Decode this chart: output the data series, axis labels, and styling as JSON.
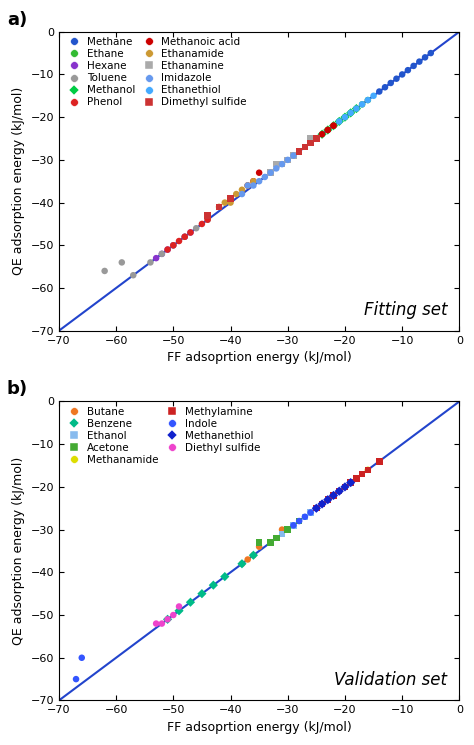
{
  "panel_a": {
    "title": "Fitting set",
    "xlabel": "FF adsoprtion energy (kJ/mol)",
    "ylabel": "QE adsorption energy (kJ/mol)",
    "xlim": [
      -70,
      0
    ],
    "ylim": [
      -70,
      0
    ],
    "xticks": [
      -70,
      -60,
      -50,
      -40,
      -30,
      -20,
      -10,
      0
    ],
    "yticks": [
      -70,
      -60,
      -50,
      -40,
      -30,
      -20,
      -10,
      0
    ],
    "label": "a)",
    "series": [
      {
        "name": "Methane",
        "color": "#2255cc",
        "marker": "o",
        "x": [
          -7,
          -8,
          -9,
          -10,
          -11,
          -12,
          -13,
          -14,
          -6,
          -5
        ],
        "y": [
          -7,
          -8,
          -9,
          -10,
          -11,
          -12,
          -13,
          -14,
          -6,
          -5
        ]
      },
      {
        "name": "Ethane",
        "color": "#33bb33",
        "marker": "o",
        "x": [
          -16,
          -17,
          -18,
          -19,
          -20,
          -21,
          -22
        ],
        "y": [
          -16,
          -17,
          -18,
          -19,
          -20,
          -21,
          -22
        ]
      },
      {
        "name": "Hexane",
        "color": "#8833cc",
        "marker": "o",
        "x": [
          -47,
          -48,
          -50,
          -51,
          -52,
          -53
        ],
        "y": [
          -47,
          -48,
          -50,
          -51,
          -52,
          -53
        ]
      },
      {
        "name": "Toluene",
        "color": "#999999",
        "marker": "o",
        "x": [
          -44,
          -46,
          -48,
          -50,
          -52,
          -54,
          -57,
          -59,
          -62
        ],
        "y": [
          -44,
          -46,
          -48,
          -50,
          -52,
          -54,
          -57,
          -54,
          -56
        ]
      },
      {
        "name": "Methanol",
        "color": "#00cc44",
        "marker": "D",
        "x": [
          -18,
          -19,
          -20,
          -21,
          -22,
          -23,
          -24
        ],
        "y": [
          -18,
          -19,
          -20,
          -21,
          -22,
          -23,
          -24
        ]
      },
      {
        "name": "Phenol",
        "color": "#dd2222",
        "marker": "o",
        "x": [
          -44,
          -45,
          -47,
          -48,
          -49,
          -50,
          -51,
          -22,
          -23
        ],
        "y": [
          -44,
          -45,
          -47,
          -48,
          -49,
          -50,
          -51,
          -22,
          -23
        ]
      },
      {
        "name": "Methanoic acid",
        "color": "#cc0000",
        "marker": "o",
        "x": [
          -22,
          -23,
          -24,
          -35,
          -36,
          -37
        ],
        "y": [
          -22,
          -23,
          -24,
          -33,
          -35,
          -36
        ]
      },
      {
        "name": "Ethanamide",
        "color": "#cc9933",
        "marker": "o",
        "x": [
          -36,
          -37,
          -38,
          -39,
          -40,
          -41,
          -42
        ],
        "y": [
          -35,
          -36,
          -37,
          -38,
          -40,
          -40,
          -41
        ]
      },
      {
        "name": "Ethanamine",
        "color": "#aaaaaa",
        "marker": "s",
        "x": [
          -26,
          -27,
          -28,
          -29,
          -30,
          -31,
          -32,
          -33
        ],
        "y": [
          -25,
          -27,
          -28,
          -29,
          -30,
          -31,
          -31,
          -33
        ]
      },
      {
        "name": "Imidazole",
        "color": "#6699ee",
        "marker": "o",
        "x": [
          -29,
          -30,
          -31,
          -32,
          -33,
          -34,
          -35,
          -36,
          -37,
          -38
        ],
        "y": [
          -29,
          -30,
          -31,
          -32,
          -33,
          -34,
          -35,
          -36,
          -36,
          -38
        ]
      },
      {
        "name": "Ethanethiol",
        "color": "#44aaff",
        "marker": "o",
        "x": [
          -15,
          -16,
          -17,
          -18,
          -19,
          -20,
          -21
        ],
        "y": [
          -15,
          -16,
          -17,
          -18,
          -19,
          -20,
          -21
        ]
      },
      {
        "name": "Dimethyl sulfide",
        "color": "#cc3333",
        "marker": "s",
        "x": [
          -25,
          -26,
          -27,
          -28,
          -40,
          -42,
          -44
        ],
        "y": [
          -25,
          -26,
          -27,
          -28,
          -39,
          -41,
          -43
        ]
      }
    ]
  },
  "panel_b": {
    "title": "Validation set",
    "xlabel": "FF adsoprtion energy (kJ/mol)",
    "ylabel": "QE adsorption energy (kJ/mol)",
    "xlim": [
      -70,
      0
    ],
    "ylim": [
      -70,
      0
    ],
    "xticks": [
      -70,
      -60,
      -50,
      -40,
      -30,
      -20,
      -10,
      0
    ],
    "yticks": [
      -70,
      -60,
      -50,
      -40,
      -30,
      -20,
      -10,
      0
    ],
    "label": "b)",
    "series": [
      {
        "name": "Butane",
        "color": "#ee7722",
        "marker": "o",
        "x": [
          -29,
          -31,
          -33,
          -35,
          -36,
          -37,
          -38
        ],
        "y": [
          -29,
          -30,
          -33,
          -34,
          -36,
          -37,
          -38
        ]
      },
      {
        "name": "Benzene",
        "color": "#00bb88",
        "marker": "D",
        "x": [
          -36,
          -38,
          -41,
          -43,
          -45,
          -47,
          -49,
          -51
        ],
        "y": [
          -36,
          -38,
          -41,
          -43,
          -45,
          -47,
          -49,
          -51
        ]
      },
      {
        "name": "Ethanol",
        "color": "#88bbee",
        "marker": "s",
        "x": [
          -22,
          -24,
          -26,
          -27,
          -28,
          -29,
          -30,
          -31,
          -32
        ],
        "y": [
          -22,
          -24,
          -26,
          -27,
          -28,
          -29,
          -30,
          -31,
          -32
        ]
      },
      {
        "name": "Acetone",
        "color": "#44aa33",
        "marker": "s",
        "x": [
          -28,
          -30,
          -32,
          -33,
          -35
        ],
        "y": [
          -28,
          -30,
          -32,
          -33,
          -33
        ]
      },
      {
        "name": "Methanamide",
        "color": "#dddd00",
        "marker": "o",
        "x": [
          -16,
          -18,
          -19,
          -20,
          -21,
          -22,
          -23
        ],
        "y": [
          -16,
          -18,
          -19,
          -20,
          -21,
          -22,
          -23
        ]
      },
      {
        "name": "Methylamine",
        "color": "#cc2222",
        "marker": "s",
        "x": [
          -14,
          -16,
          -17,
          -18,
          -19,
          -20,
          -21,
          -22,
          -23,
          -24,
          -25
        ],
        "y": [
          -14,
          -16,
          -17,
          -18,
          -19,
          -20,
          -21,
          -22,
          -23,
          -24,
          -25
        ]
      },
      {
        "name": "Indole",
        "color": "#3355ff",
        "marker": "o",
        "x": [
          -19,
          -21,
          -23,
          -24,
          -25,
          -26,
          -27,
          -28,
          -29,
          -66,
          -67
        ],
        "y": [
          -19,
          -21,
          -23,
          -24,
          -25,
          -26,
          -27,
          -28,
          -29,
          -60,
          -65
        ]
      },
      {
        "name": "Methanethiol",
        "color": "#1122cc",
        "marker": "D",
        "x": [
          -19,
          -20,
          -21,
          -22,
          -23,
          -24,
          -25
        ],
        "y": [
          -19,
          -20,
          -21,
          -22,
          -23,
          -24,
          -25
        ]
      },
      {
        "name": "Diethyl sulfide",
        "color": "#ee44cc",
        "marker": "o",
        "x": [
          -49,
          -50,
          -51,
          -52,
          -53
        ],
        "y": [
          -48,
          -50,
          -51,
          -52,
          -52
        ]
      }
    ]
  },
  "line_color": "#2244cc",
  "bg_color": "#ffffff",
  "title_fontsize": 12,
  "label_fontsize": 9,
  "tick_fontsize": 8,
  "legend_fontsize": 7.5,
  "marker_size": 22,
  "marker_size_legend": 5
}
